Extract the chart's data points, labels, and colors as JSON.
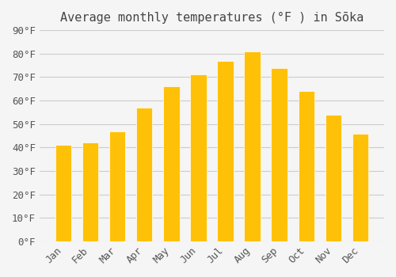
{
  "title": "Average monthly temperatures (°F ) in Sōka",
  "months": [
    "Jan",
    "Feb",
    "Mar",
    "Apr",
    "May",
    "Jun",
    "Jul",
    "Aug",
    "Sep",
    "Oct",
    "Nov",
    "Dec"
  ],
  "values": [
    41,
    42,
    47,
    57,
    66,
    71,
    77,
    81,
    74,
    64,
    54,
    46
  ],
  "bar_color_top": "#FFC107",
  "bar_color_bottom": "#FFD966",
  "background_color": "#F5F5F5",
  "grid_color": "#CCCCCC",
  "ylim": [
    0,
    90
  ],
  "yticks": [
    0,
    10,
    20,
    30,
    40,
    50,
    60,
    70,
    80,
    90
  ],
  "ytick_labels": [
    "0°F",
    "10°F",
    "20°F",
    "30°F",
    "40°F",
    "50°F",
    "60°F",
    "70°F",
    "80°F",
    "90°F"
  ],
  "title_fontsize": 11,
  "tick_fontsize": 9,
  "bar_width": 0.6
}
